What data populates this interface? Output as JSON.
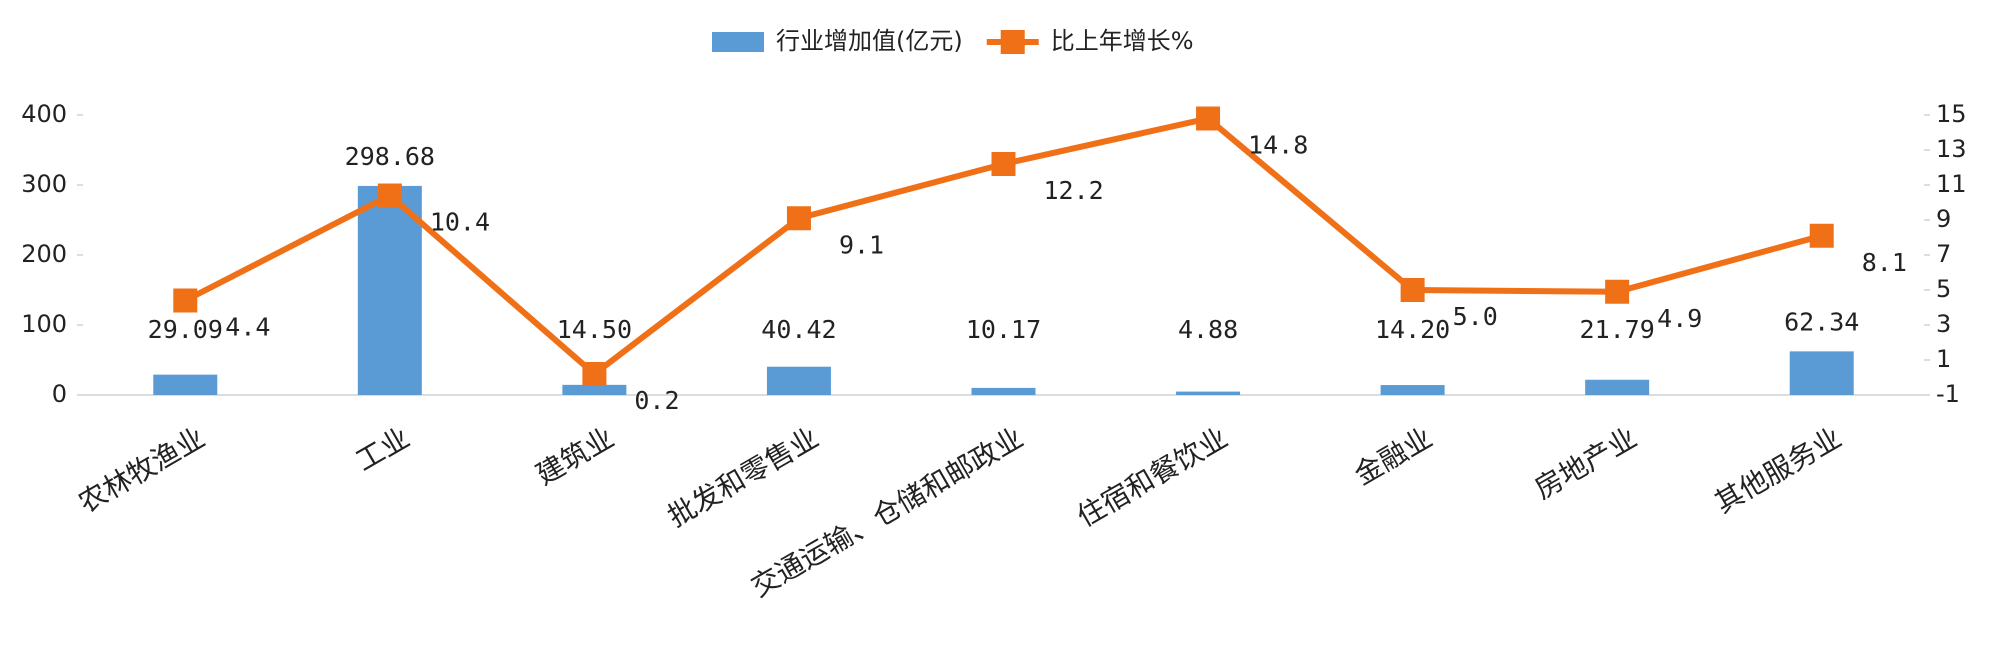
{
  "chart_data": {
    "type": "bar_line",
    "categories": [
      "农林牧渔业",
      "工业",
      "建筑业",
      "批发和零售业",
      "交通运输、仓储和邮政业",
      "住宿和餐饮业",
      "金融业",
      "房地产业",
      "其他服务业"
    ],
    "series": [
      {
        "name": "行业增加值(亿元)",
        "color": "#5b9bd5",
        "type": "bar",
        "values": [
          29.09,
          298.68,
          14.5,
          40.42,
          10.17,
          4.88,
          14.2,
          21.79,
          62.34
        ],
        "value_labels": [
          "29.09",
          "298.68",
          "14.50",
          "40.42",
          "10.17",
          "4.88",
          "14.20",
          "21.79",
          "62.34"
        ]
      },
      {
        "name": "比上年增长%",
        "color": "#f07018",
        "type": "line",
        "axis": "y2",
        "values": [
          4.4,
          10.4,
          0.2,
          9.1,
          12.2,
          14.8,
          5.0,
          4.9,
          8.1
        ],
        "value_labels": [
          "4.4",
          "10.4",
          "0.2",
          "9.1",
          "12.2",
          "14.8",
          "5.0",
          "4.9",
          "8.1"
        ]
      }
    ],
    "ylim": [
      0,
      400
    ],
    "yticks": [
      0,
      100,
      200,
      300,
      400
    ],
    "y2lim": [
      -1,
      15
    ],
    "y2ticks": [
      -1,
      1,
      3,
      5,
      7,
      9,
      11,
      13,
      15
    ],
    "legend": "top"
  }
}
